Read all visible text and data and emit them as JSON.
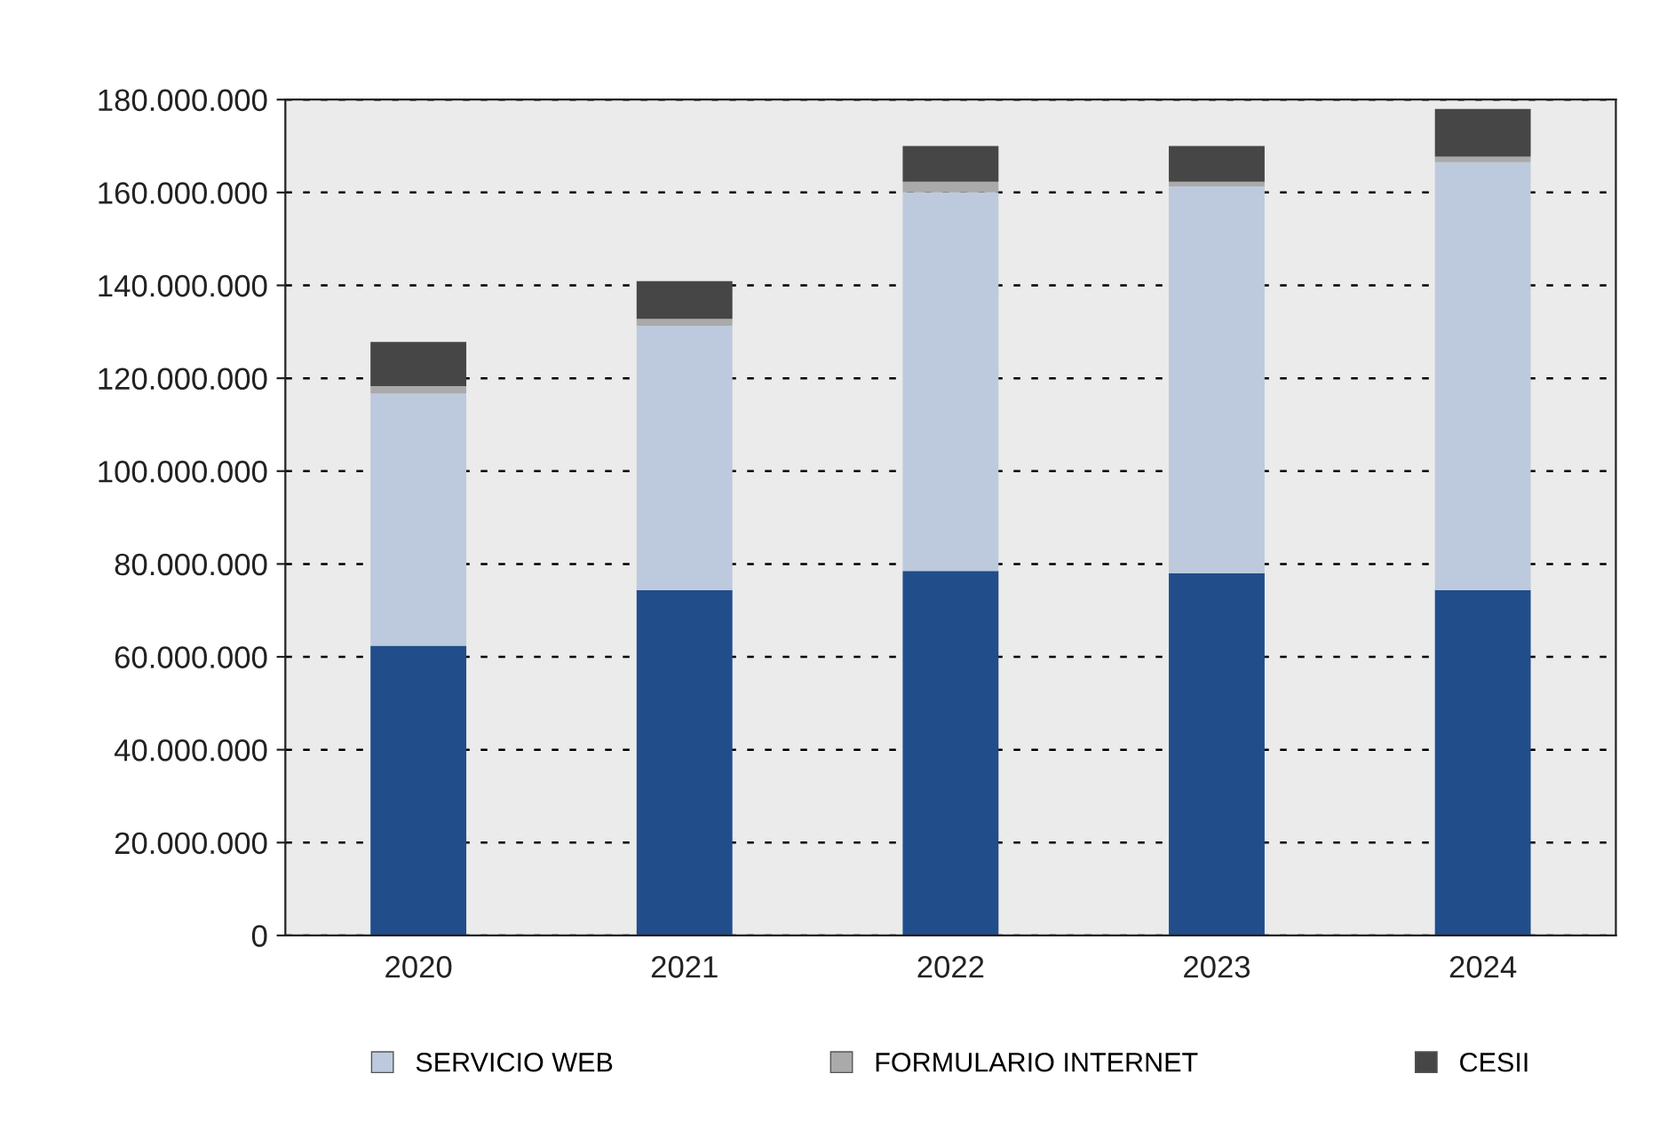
{
  "chart_data": {
    "type": "bar",
    "stacked": true,
    "categories": [
      "2020",
      "2021",
      "2022",
      "2023",
      "2024"
    ],
    "series": [
      {
        "color": "#214d8a",
        "values": [
          62400000,
          74400000,
          78500000,
          78000000,
          74400000
        ]
      },
      {
        "name": "SERVICIO WEB",
        "color": "#bdcadd",
        "values": [
          54300000,
          56900000,
          81500000,
          83300000,
          92100000
        ]
      },
      {
        "name": "FORMULARIO INTERNET",
        "color": "#aaaaaa",
        "values": [
          1600000,
          1500000,
          2300000,
          1000000,
          1200000
        ]
      },
      {
        "name": "CESII",
        "color": "#464646",
        "values": [
          9500000,
          8100000,
          7700000,
          7700000,
          10300000
        ]
      }
    ],
    "ylim": [
      0,
      180000000
    ],
    "yticks": [
      0,
      {
        "value": 20000000,
        "label": "20.000.000"
      },
      {
        "value": 40000000,
        "label": "40.000.000"
      },
      {
        "value": 60000000,
        "label": "60.000.000"
      },
      {
        "value": 80000000,
        "label": "80.000.000"
      },
      {
        "value": 100000000,
        "label": "100.000.000"
      },
      {
        "value": 120000000,
        "label": "120.000.000"
      },
      {
        "value": 140000000,
        "label": "140.000.000"
      },
      {
        "value": 160000000,
        "label": "160.000.000"
      },
      {
        "value": 180000000,
        "label": "180.000.000"
      }
    ],
    "grid": "y",
    "legend": "bottom"
  }
}
